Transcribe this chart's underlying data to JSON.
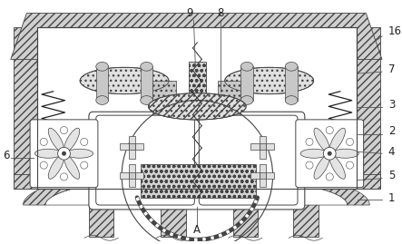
{
  "bg_color": "#ffffff",
  "lc": "#444444",
  "lw": 0.8,
  "hatch_fc": "#d4d4d4",
  "white": "#ffffff",
  "light": "#eeeeee",
  "mid": "#cccccc"
}
